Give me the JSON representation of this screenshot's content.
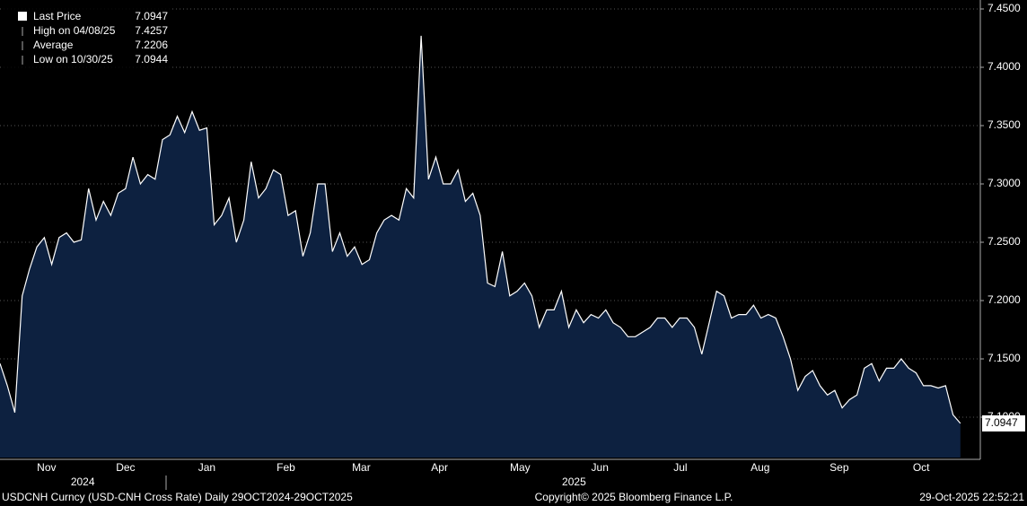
{
  "chart_data": {
    "type": "area",
    "series": [
      {
        "name": "Last Price",
        "color": "#ffffff",
        "fill": "#0d2140",
        "values": [
          7.146,
          7.127,
          7.104,
          7.204,
          7.227,
          7.246,
          7.254,
          7.231,
          7.254,
          7.258,
          7.25,
          7.252,
          7.296,
          7.269,
          7.285,
          7.273,
          7.292,
          7.296,
          7.323,
          7.3,
          7.308,
          7.304,
          7.338,
          7.342,
          7.358,
          7.344,
          7.362,
          7.346,
          7.348,
          7.265,
          7.273,
          7.288,
          7.25,
          7.269,
          7.319,
          7.288,
          7.296,
          7.312,
          7.308,
          7.273,
          7.277,
          7.238,
          7.258,
          7.3,
          7.3,
          7.242,
          7.258,
          7.238,
          7.246,
          7.231,
          7.235,
          7.258,
          7.269,
          7.273,
          7.269,
          7.296,
          7.288,
          7.427,
          7.304,
          7.323,
          7.3,
          7.3,
          7.312,
          7.285,
          7.292,
          7.273,
          7.215,
          7.212,
          7.242,
          7.204,
          7.208,
          7.215,
          7.204,
          7.177,
          7.192,
          7.192,
          7.208,
          7.177,
          7.192,
          7.181,
          7.188,
          7.185,
          7.192,
          7.181,
          7.177,
          7.169,
          7.169,
          7.173,
          7.177,
          7.185,
          7.185,
          7.177,
          7.185,
          7.185,
          7.177,
          7.154,
          7.181,
          7.208,
          7.204,
          7.185,
          7.188,
          7.188,
          7.196,
          7.185,
          7.188,
          7.185,
          7.169,
          7.15,
          7.123,
          7.135,
          7.14,
          7.127,
          7.119,
          7.123,
          7.108,
          7.115,
          7.119,
          7.142,
          7.146,
          7.131,
          7.142,
          7.142,
          7.15,
          7.142,
          7.138,
          7.127,
          7.127,
          7.125,
          7.127,
          7.102,
          7.0947
        ]
      }
    ],
    "last_price": 7.0947,
    "legend_stats": [
      {
        "label": "High on 04/08/25",
        "value": 7.4257
      },
      {
        "label": "Average",
        "value": 7.2206
      },
      {
        "label": "Low on 10/30/25",
        "value": 7.0944
      }
    ],
    "xlim": [
      0,
      132.7
    ],
    "xticks": [
      {
        "value": 6.3,
        "label": "Nov"
      },
      {
        "value": 17.0,
        "label": "Dec"
      },
      {
        "value": 28.0,
        "label": "Jan"
      },
      {
        "value": 38.7,
        "label": "Feb"
      },
      {
        "value": 48.9,
        "label": "Mar"
      },
      {
        "value": 59.5,
        "label": "Apr"
      },
      {
        "value": 70.4,
        "label": "May"
      },
      {
        "value": 81.2,
        "label": "Jun"
      },
      {
        "value": 92.1,
        "label": "Jul"
      },
      {
        "value": 102.9,
        "label": "Aug"
      },
      {
        "value": 113.6,
        "label": "Sep"
      },
      {
        "value": 124.7,
        "label": "Oct"
      }
    ],
    "year_labels": [
      {
        "value": 11.2,
        "label": "2024"
      },
      {
        "value": 77.7,
        "label": "2025"
      }
    ],
    "ylim": [
      7.0654,
      7.4577
    ],
    "yticks": [
      {
        "value": 7.1,
        "label": "7.1000"
      },
      {
        "value": 7.15,
        "label": "7.1500"
      },
      {
        "value": 7.2,
        "label": "7.2000"
      },
      {
        "value": 7.25,
        "label": "7.2500"
      },
      {
        "value": 7.3,
        "label": "7.3000"
      },
      {
        "value": 7.35,
        "label": "7.3500"
      },
      {
        "value": 7.4,
        "label": "7.4000"
      },
      {
        "value": 7.45,
        "label": "7.4500"
      }
    ],
    "grid": true,
    "footer": {
      "left": "USDCNH Curncy (USD-CNH Cross Rate) Daily 29OCT2024-29OCT2025",
      "center": "Copyright© 2025 Bloomberg Finance L.P.",
      "right": "29-Oct-2025 22:52:21"
    }
  }
}
